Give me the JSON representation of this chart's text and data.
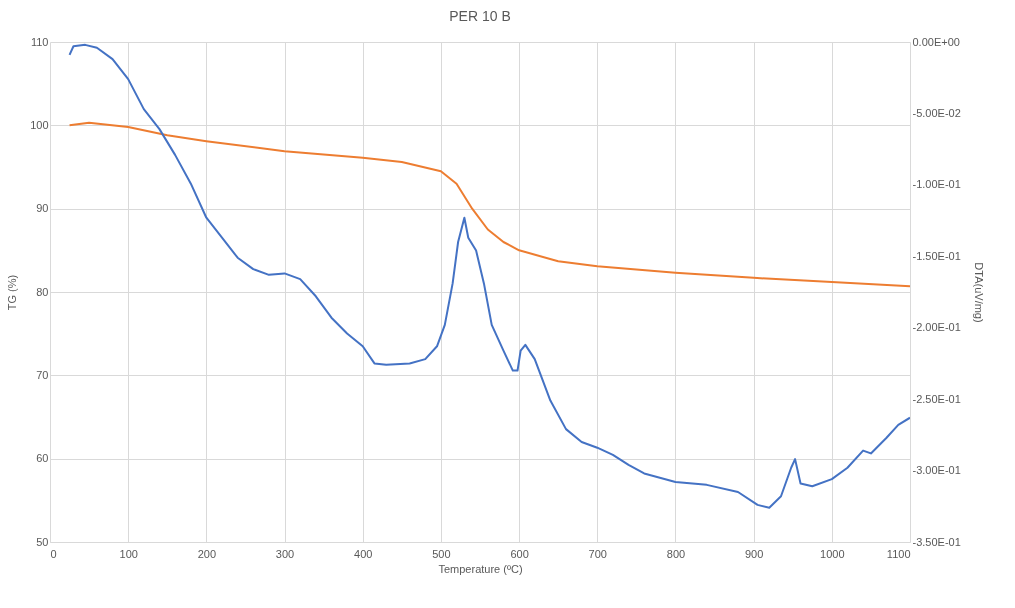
{
  "chart_data": {
    "type": "line",
    "title": "PER 10 B",
    "xlabel": "Temperature (ºC)",
    "ylabel": "TG (%)",
    "y2label": "DTA(uV/mg)",
    "xlim": [
      0,
      1100
    ],
    "xticks": [
      0,
      100,
      200,
      300,
      400,
      500,
      600,
      700,
      800,
      900,
      1000,
      1100
    ],
    "ylim": [
      50,
      110
    ],
    "yticks": [
      50,
      60,
      70,
      80,
      90,
      100,
      110
    ],
    "y2lim": [
      -0.35,
      0
    ],
    "y2ticks": [
      {
        "value": -0.35,
        "label": "-3.50E-01"
      },
      {
        "value": -0.3,
        "label": "-3.00E-01"
      },
      {
        "value": -0.25,
        "label": "-2.50E-01"
      },
      {
        "value": -0.2,
        "label": "-2.00E-01"
      },
      {
        "value": -0.15,
        "label": "-1.50E-01"
      },
      {
        "value": -0.1,
        "label": "-1.00E-01"
      },
      {
        "value": -0.05,
        "label": "-5.00E-02"
      },
      {
        "value": 0,
        "label": "0.00E+00"
      }
    ],
    "grid": true,
    "legend": false,
    "series": [
      {
        "color": "#ed7d31",
        "axis": "y",
        "x": [
          25,
          50,
          100,
          150,
          200,
          300,
          400,
          450,
          500,
          520,
          540,
          560,
          580,
          600,
          650,
          700,
          800,
          900,
          1000,
          1100
        ],
        "values": [
          100,
          100.3,
          99.8,
          98.8,
          98.1,
          96.9,
          96.1,
          95.6,
          94.5,
          93,
          90,
          87.5,
          86,
          85,
          83.7,
          83.1,
          82.3,
          81.7,
          81.2,
          80.7
        ]
      },
      {
        "color": "#4472c4",
        "axis": "y2",
        "x": [
          25,
          30,
          45,
          60,
          80,
          100,
          120,
          140,
          160,
          180,
          200,
          220,
          240,
          260,
          280,
          300,
          320,
          340,
          360,
          380,
          400,
          415,
          430,
          460,
          480,
          495,
          505,
          515,
          522,
          530,
          535,
          545,
          555,
          565,
          580,
          592,
          598,
          602,
          608,
          620,
          640,
          660,
          680,
          700,
          720,
          740,
          760,
          800,
          840,
          880,
          905,
          920,
          935,
          948,
          953,
          960,
          975,
          1000,
          1020,
          1040,
          1050,
          1070,
          1085,
          1100
        ],
        "values": [
          -0.009,
          -0.003,
          -0.002,
          -0.004,
          -0.012,
          -0.026,
          -0.047,
          -0.061,
          -0.079,
          -0.099,
          -0.123,
          -0.137,
          -0.151,
          -0.159,
          -0.163,
          -0.162,
          -0.166,
          -0.178,
          -0.193,
          -0.204,
          -0.213,
          -0.225,
          -0.226,
          -0.225,
          -0.222,
          -0.213,
          -0.198,
          -0.169,
          -0.14,
          -0.123,
          -0.137,
          -0.146,
          -0.169,
          -0.198,
          -0.216,
          -0.23,
          -0.23,
          -0.216,
          -0.212,
          -0.222,
          -0.251,
          -0.271,
          -0.28,
          -0.284,
          -0.289,
          -0.296,
          -0.302,
          -0.308,
          -0.31,
          -0.315,
          -0.324,
          -0.326,
          -0.318,
          -0.298,
          -0.292,
          -0.309,
          -0.311,
          -0.306,
          -0.298,
          -0.286,
          -0.288,
          -0.277,
          -0.268,
          -0.263
        ]
      }
    ]
  }
}
